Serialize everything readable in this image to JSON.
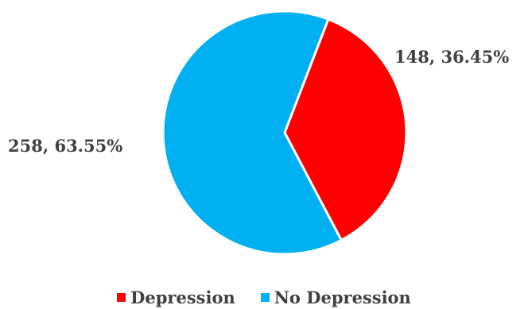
{
  "chart_data": {
    "type": "pie",
    "title": "",
    "categories": [
      "Depression",
      "No Depression"
    ],
    "values": [
      148,
      258
    ],
    "percentages": [
      36.45,
      63.55
    ],
    "data_labels": [
      "148, 36.45%",
      "258, 63.55%"
    ],
    "colors": [
      "#ff0000",
      "#00b0f0"
    ],
    "legend_position": "bottom",
    "start_angle_degrees": 21
  },
  "legend": {
    "items": [
      {
        "label": "Depression",
        "color": "#ff0000"
      },
      {
        "label": "No Depression",
        "color": "#00b0f0"
      }
    ]
  }
}
